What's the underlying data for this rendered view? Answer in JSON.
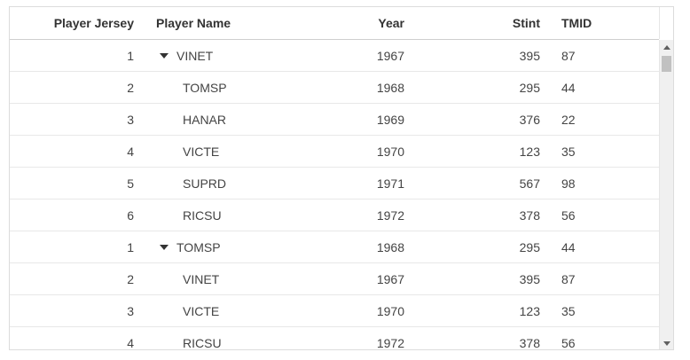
{
  "columns": {
    "jersey": "Player Jersey",
    "name": "Player Name",
    "year": "Year",
    "stint": "Stint",
    "tmid": "TMID"
  },
  "rows": [
    {
      "jersey": "1",
      "name": "VINET",
      "year": "1967",
      "stint": "395",
      "tmid": "87",
      "group_header": true,
      "expanded": true
    },
    {
      "jersey": "2",
      "name": "TOMSP",
      "year": "1968",
      "stint": "295",
      "tmid": "44",
      "group_header": false
    },
    {
      "jersey": "3",
      "name": "HANAR",
      "year": "1969",
      "stint": "376",
      "tmid": "22",
      "group_header": false
    },
    {
      "jersey": "4",
      "name": "VICTE",
      "year": "1970",
      "stint": "123",
      "tmid": "35",
      "group_header": false
    },
    {
      "jersey": "5",
      "name": "SUPRD",
      "year": "1971",
      "stint": "567",
      "tmid": "98",
      "group_header": false
    },
    {
      "jersey": "6",
      "name": "RICSU",
      "year": "1972",
      "stint": "378",
      "tmid": "56",
      "group_header": false
    },
    {
      "jersey": "1",
      "name": "TOMSP",
      "year": "1968",
      "stint": "295",
      "tmid": "44",
      "group_header": true,
      "expanded": true
    },
    {
      "jersey": "2",
      "name": "VINET",
      "year": "1967",
      "stint": "395",
      "tmid": "87",
      "group_header": false
    },
    {
      "jersey": "3",
      "name": "VICTE",
      "year": "1970",
      "stint": "123",
      "tmid": "35",
      "group_header": false
    },
    {
      "jersey": "4",
      "name": "RICSU",
      "year": "1972",
      "stint": "378",
      "tmid": "56",
      "group_header": false
    }
  ],
  "icons": {
    "expand": "chevron-down-icon",
    "scroll_up": "arrow-up-icon",
    "scroll_down": "arrow-down-icon"
  },
  "colors": {
    "border": "#dcdcdc",
    "row_divider": "#e8e8e8",
    "text": "#444444",
    "header_text": "#333333",
    "scrollbar_track": "#f0f0f0",
    "scrollbar_thumb": "#c1c1c1"
  },
  "scroll": {
    "position_fraction": 0.0
  }
}
